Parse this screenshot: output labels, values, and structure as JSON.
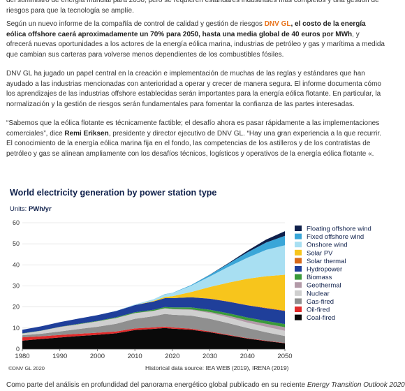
{
  "article": {
    "p0": "del suministro de energía mundial para 2050, pero se requieren estándares industriales más completos y una gestión de riesgos para que la tecnología se amplíe.",
    "p1": {
      "pre": "Según un nuevo informe de la compañía de control de calidad y gestión de riesgos ",
      "link": "DNV GL",
      "bold": ", el costo de la energía eólica offshore caerá aproximadamente un 70% para 2050, hasta una media global de 40 euros por MWh",
      "post": ", y ofrecerá nuevas oportunidades a los actores de la energía eólica marina, industrias de petróleo y gas y marítima a medida que cambian sus carteras para volverse menos dependientes de los combustibles fósiles."
    },
    "p2": "DNV GL ha jugado un papel central en la creación e implementación de muchas de las reglas y estándares que han ayudado a las industrias mencionadas con anterioridad a operar y crecer de manera segura. El informe documenta cómo los aprendizajes de las industrias offshore establecidas serán importantes para la energía eólica flotante. En particular, la normalización y la gestión de riesgos serán fundamentales para fomentar la confianza de las partes interesadas.",
    "p3": {
      "pre": "“Sabemos que la eólica flotante es técnicamente factible; el desafío ahora es pasar rápidamente a las implementaciones comerciales”, dice ",
      "bold": "Remi Eriksen",
      "post": ", presidente y director ejecutivo de DNV GL. “Hay una gran experiencia a la que recurrir. El conocimiento de la energía eólica marina fija en el fondo, las competencias de los astilleros y de los contratistas de petróleo y gas se alinean ampliamente con los desafíos técnicos, logísticos y operativos de la energía eólica flotante «."
    },
    "p4": {
      "pre": "Como parte del análisis en profundidad del panorama energético global publicado en su reciente ",
      "em": "Energy Transition Outlook 2020"
    }
  },
  "figure": {
    "title": "World electricity generation by power station type",
    "units_label": "Units: ",
    "units_value": "PWh/yr",
    "copyright": "©DNV GL 2020",
    "source": "Historical data source: IEA WEB (2019), IRENA (2019)"
  },
  "chart_data": {
    "type": "area",
    "stacked": true,
    "x": [
      1980,
      1985,
      1990,
      1995,
      2000,
      2005,
      2010,
      2015,
      2018,
      2020,
      2025,
      2030,
      2035,
      2040,
      2045,
      2050
    ],
    "xticks": [
      1980,
      1990,
      2000,
      2010,
      2020,
      2030,
      2040,
      2050
    ],
    "ylim": [
      0,
      60
    ],
    "yticks": [
      0,
      10,
      20,
      30,
      40,
      50,
      60
    ],
    "grid": true,
    "legend_position": "right",
    "series": [
      {
        "name": "Coal-fired",
        "color": "#0a0a0a",
        "values": [
          4.0,
          4.8,
          5.5,
          6.2,
          6.8,
          7.5,
          9.0,
          9.6,
          10.0,
          9.7,
          9.2,
          8.0,
          6.5,
          5.0,
          3.8,
          2.8
        ]
      },
      {
        "name": "Oil-fired",
        "color": "#e02a2a",
        "values": [
          1.6,
          1.3,
          1.2,
          1.1,
          1.0,
          0.9,
          0.8,
          0.7,
          0.7,
          0.6,
          0.5,
          0.4,
          0.3,
          0.2,
          0.2,
          0.1
        ]
      },
      {
        "name": "Gas-fired",
        "color": "#8f8f8f",
        "values": [
          1.0,
          1.2,
          1.7,
          2.2,
          2.8,
          3.6,
          4.6,
          5.3,
          6.0,
          6.0,
          6.2,
          6.0,
          5.5,
          4.8,
          4.0,
          3.3
        ]
      },
      {
        "name": "Nuclear",
        "color": "#cfcfcf",
        "values": [
          0.8,
          1.4,
          2.0,
          2.2,
          2.5,
          2.7,
          2.6,
          2.5,
          2.6,
          2.6,
          2.7,
          2.7,
          2.7,
          2.6,
          2.6,
          2.5
        ]
      },
      {
        "name": "Geothermal",
        "color": "#b39aa8",
        "values": [
          0.0,
          0.0,
          0.1,
          0.1,
          0.1,
          0.1,
          0.1,
          0.1,
          0.1,
          0.2,
          0.3,
          0.5,
          0.8,
          1.1,
          1.4,
          1.7
        ]
      },
      {
        "name": "Biomass",
        "color": "#3a9a3a",
        "values": [
          0.1,
          0.1,
          0.1,
          0.2,
          0.2,
          0.3,
          0.4,
          0.5,
          0.6,
          0.7,
          0.9,
          1.1,
          1.2,
          1.3,
          1.4,
          1.5
        ]
      },
      {
        "name": "Hydropower",
        "color": "#1f3f9a",
        "values": [
          1.7,
          2.0,
          2.2,
          2.5,
          2.7,
          3.0,
          3.4,
          3.9,
          4.2,
          4.4,
          4.8,
          5.2,
          5.5,
          5.8,
          6.0,
          6.2
        ]
      },
      {
        "name": "Solar thermal",
        "color": "#d86a1a",
        "values": [
          0.0,
          0.0,
          0.0,
          0.0,
          0.0,
          0.0,
          0.0,
          0.0,
          0.0,
          0.0,
          0.0,
          0.1,
          0.1,
          0.1,
          0.2,
          0.2
        ]
      },
      {
        "name": "Solar PV",
        "color": "#f7c51c",
        "values": [
          0.0,
          0.0,
          0.0,
          0.0,
          0.0,
          0.0,
          0.0,
          0.3,
          0.6,
          0.9,
          2.5,
          5.5,
          9.0,
          12.5,
          15.0,
          17.0
        ]
      },
      {
        "name": "Onshore wind",
        "color": "#a8dff2",
        "values": [
          0.0,
          0.0,
          0.0,
          0.0,
          0.0,
          0.1,
          0.3,
          0.8,
          1.2,
          1.5,
          3.0,
          5.0,
          7.5,
          10.0,
          12.5,
          14.0
        ]
      },
      {
        "name": "Fixed offshore wind",
        "color": "#3aa6d8",
        "values": [
          0.0,
          0.0,
          0.0,
          0.0,
          0.0,
          0.0,
          0.0,
          0.0,
          0.1,
          0.1,
          0.3,
          0.8,
          1.5,
          2.5,
          3.5,
          4.5
        ]
      },
      {
        "name": "Floating offshore wind",
        "color": "#0f204b",
        "values": [
          0.0,
          0.0,
          0.0,
          0.0,
          0.0,
          0.0,
          0.0,
          0.0,
          0.0,
          0.0,
          0.0,
          0.1,
          0.3,
          0.8,
          1.4,
          2.2
        ]
      }
    ]
  }
}
